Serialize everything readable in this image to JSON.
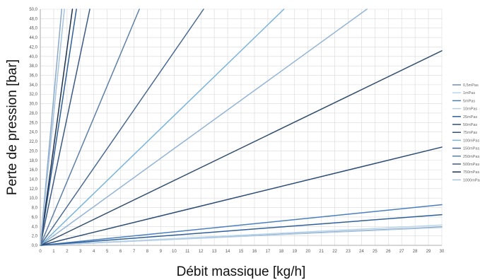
{
  "chart_data": {
    "type": "line",
    "xlabel": "Débit massique [kg/h]",
    "ylabel": "Perte de pression [bar]",
    "xlim": [
      0,
      30
    ],
    "ylim": [
      0,
      50
    ],
    "x_ticks": [
      "0",
      "1",
      "2",
      "3",
      "4",
      "5",
      "6",
      "7",
      "8",
      "9",
      "10",
      "11",
      "12",
      "13",
      "14",
      "15",
      "16",
      "17",
      "18",
      "19",
      "20",
      "21",
      "22",
      "23",
      "24",
      "25",
      "26",
      "27",
      "28",
      "29",
      "30"
    ],
    "y_ticks": [
      "0,0",
      "2,0",
      "4,0",
      "6,0",
      "8,0",
      "10,0",
      "12,0",
      "14,0",
      "16,0",
      "18,0",
      "20,0",
      "22,0",
      "24,0",
      "26,0",
      "28,0",
      "30,0",
      "32,0",
      "34,0",
      "36,0",
      "38,0",
      "40,0",
      "42,0",
      "44,0",
      "46,0",
      "48,0",
      "50,0"
    ],
    "grid": true,
    "legend_position": "right",
    "series": [
      {
        "name": "0,5mPas",
        "color": "#6f8eb3",
        "x": [
          0,
          30
        ],
        "y": [
          0,
          3.9
        ]
      },
      {
        "name": "1mPas",
        "color": "#b9d6ec",
        "x": [
          0,
          30
        ],
        "y": [
          0,
          4.3
        ]
      },
      {
        "name": "5mPas",
        "color": "#4a7fbd",
        "x": [
          0,
          30
        ],
        "y": [
          0,
          8.6
        ]
      },
      {
        "name": "10mPas",
        "color": "#b4cde4",
        "x": [
          0,
          30
        ],
        "y": [
          0,
          3.8
        ]
      },
      {
        "name": "25mPas",
        "color": "#2f5f99",
        "x": [
          0,
          30
        ],
        "y": [
          0,
          6.5
        ]
      },
      {
        "name": "50mPas",
        "color": "#2c4c78",
        "x": [
          0,
          30
        ],
        "y": [
          0,
          20.8
        ]
      },
      {
        "name": "75mPas",
        "color": "#34506e",
        "x": [
          0,
          30
        ],
        "y": [
          0,
          41.2
        ]
      },
      {
        "name": "100mPas",
        "color": "#78b4dd",
        "x": [
          0,
          18.2
        ],
        "y": [
          0,
          50
        ]
      },
      {
        "name": "150mPas",
        "color": "#4a6a90",
        "x": [
          0,
          12.2
        ],
        "y": [
          0,
          50
        ]
      },
      {
        "name": "250mPas",
        "color": "#5e7fa6",
        "x": [
          0,
          7.4
        ],
        "y": [
          0,
          50
        ]
      },
      {
        "name": "500mPas",
        "color": "#3c5a86",
        "x": [
          0,
          3.7
        ],
        "y": [
          0,
          50
        ]
      },
      {
        "name": "750mPas",
        "color": "#1f3350",
        "x": [
          0,
          2.4
        ],
        "y": [
          0,
          50
        ]
      },
      {
        "name": "1000mPas",
        "color": "#a7c3df",
        "x": [
          0,
          1.8
        ],
        "y": [
          0,
          50
        ]
      }
    ],
    "extra_lines": [
      {
        "color": "#93b4d6",
        "x": [
          0,
          24.4
        ],
        "y": [
          0,
          50
        ]
      },
      {
        "color": "#2f5f99",
        "x": [
          0,
          2.7
        ],
        "y": [
          0,
          50
        ]
      },
      {
        "color": "#8aa8c8",
        "x": [
          0,
          1.6
        ],
        "y": [
          0,
          50
        ]
      }
    ]
  }
}
